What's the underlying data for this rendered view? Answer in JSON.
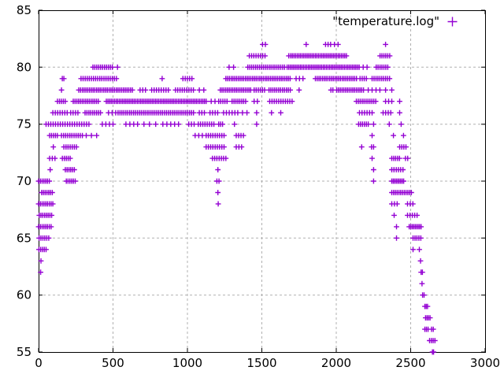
{
  "chart_data": {
    "type": "scatter",
    "title": "",
    "xlabel": "",
    "ylabel": "",
    "xlim": [
      0,
      3000
    ],
    "ylim": [
      55,
      85
    ],
    "xticks": [
      0,
      500,
      1000,
      1500,
      2000,
      2500,
      3000
    ],
    "yticks": [
      55,
      60,
      65,
      70,
      75,
      80,
      85
    ],
    "grid": true,
    "grid_color": "#b0b0b0",
    "axis_color": "#000000",
    "background": "#ffffff",
    "legend_position": "top-right-inside",
    "series": [
      {
        "name": "\"temperature.log\"",
        "marker": "plus",
        "color": "#9400d3",
        "points_rle_format": "[y, x_start, x_end, x_step] ; x_step 0 = single point at x_start",
        "points_rle": [
          [
            55,
            2646,
            2654,
            8
          ],
          [
            56,
            2627,
            2663,
            12
          ],
          [
            57,
            2595,
            2617,
            11
          ],
          [
            57,
            2640,
            2652,
            12
          ],
          [
            58,
            2600,
            2630,
            10
          ],
          [
            59,
            2595,
            2613,
            9
          ],
          [
            60,
            2580,
            2590,
            10
          ],
          [
            61,
            2576,
            2576,
            0
          ],
          [
            62,
            14,
            14,
            0
          ],
          [
            62,
            2570,
            2579,
            9
          ],
          [
            63,
            16,
            16,
            0
          ],
          [
            63,
            2566,
            2566,
            0
          ],
          [
            64,
            2,
            50,
            12
          ],
          [
            64,
            2516,
            2516,
            0
          ],
          [
            64,
            2558,
            2558,
            0
          ],
          [
            65,
            3,
            68,
            13
          ],
          [
            65,
            2405,
            2405,
            0
          ],
          [
            65,
            2516,
            2568,
            13
          ],
          [
            66,
            0,
            84,
            12
          ],
          [
            66,
            2405,
            2405,
            0
          ],
          [
            66,
            2490,
            2570,
            10
          ],
          [
            67,
            4,
            88,
            12
          ],
          [
            67,
            2389,
            2389,
            0
          ],
          [
            67,
            2479,
            2543,
            16
          ],
          [
            68,
            0,
            96,
            12
          ],
          [
            68,
            1207,
            1207,
            0
          ],
          [
            68,
            2373,
            2409,
            18
          ],
          [
            68,
            2479,
            2515,
            18
          ],
          [
            69,
            20,
            92,
            12
          ],
          [
            69,
            1205,
            1205,
            0
          ],
          [
            69,
            2373,
            2505,
            12
          ],
          [
            70,
            0,
            72,
            12
          ],
          [
            70,
            186,
            246,
            12
          ],
          [
            70,
            1198,
            1212,
            14
          ],
          [
            70,
            2251,
            2251,
            0
          ],
          [
            70,
            2373,
            2453,
            10
          ],
          [
            71,
            78,
            78,
            0
          ],
          [
            71,
            180,
            240,
            12
          ],
          [
            71,
            1205,
            1205,
            0
          ],
          [
            71,
            2251,
            2251,
            0
          ],
          [
            71,
            2373,
            2448,
            15
          ],
          [
            72,
            74,
            110,
            18
          ],
          [
            72,
            160,
            214,
            13
          ],
          [
            72,
            1168,
            1258,
            15
          ],
          [
            72,
            2241,
            2241,
            0
          ],
          [
            72,
            2373,
            2436,
            13
          ],
          [
            72,
            2465,
            2480,
            15
          ],
          [
            73,
            99,
            99,
            0
          ],
          [
            73,
            170,
            254,
            14
          ],
          [
            73,
            1126,
            1246,
            15
          ],
          [
            73,
            1328,
            1364,
            18
          ],
          [
            73,
            2171,
            2171,
            0
          ],
          [
            73,
            2237,
            2251,
            14
          ],
          [
            73,
            2426,
            2470,
            14
          ],
          [
            74,
            74,
            126,
            13
          ],
          [
            74,
            154,
            294,
            14
          ],
          [
            74,
            320,
            391,
            35
          ],
          [
            74,
            1052,
            1100,
            24
          ],
          [
            74,
            1126,
            1250,
            15
          ],
          [
            74,
            1328,
            1376,
            16
          ],
          [
            74,
            2241,
            2241,
            0
          ],
          [
            74,
            2384,
            2384,
            0
          ],
          [
            74,
            2452,
            2452,
            0
          ],
          [
            75,
            50,
            348,
            16
          ],
          [
            75,
            428,
            500,
            24
          ],
          [
            75,
            587,
            666,
            26
          ],
          [
            75,
            708,
            708,
            0
          ],
          [
            75,
            745,
            787,
            42
          ],
          [
            75,
            835,
            862,
            27
          ],
          [
            75,
            888,
            941,
            26
          ],
          [
            75,
            1009,
            1046,
            18
          ],
          [
            75,
            1073,
            1184,
            15
          ],
          [
            75,
            1210,
            1237,
            13
          ],
          [
            75,
            1316,
            1316,
            0
          ],
          [
            75,
            1465,
            1465,
            0
          ],
          [
            75,
            2150,
            2215,
            13
          ],
          [
            75,
            2251,
            2251,
            0
          ],
          [
            75,
            2356,
            2356,
            0
          ],
          [
            75,
            2436,
            2436,
            0
          ],
          [
            76,
            96,
            192,
            16
          ],
          [
            76,
            216,
            264,
            16
          ],
          [
            76,
            312,
            420,
            13
          ],
          [
            76,
            470,
            518,
            24
          ],
          [
            76,
            534,
            1046,
            13
          ],
          [
            76,
            1080,
            1115,
            17
          ],
          [
            76,
            1152,
            1205,
            17
          ],
          [
            76,
            1243,
            1340,
            19
          ],
          [
            76,
            1370,
            1400,
            30
          ],
          [
            76,
            1465,
            1465,
            0
          ],
          [
            76,
            1565,
            1627,
            62
          ],
          [
            76,
            2156,
            2241,
            17
          ],
          [
            76,
            2315,
            2368,
            17
          ],
          [
            76,
            2426,
            2426,
            0
          ],
          [
            77,
            127,
            180,
            13
          ],
          [
            77,
            233,
            402,
            12
          ],
          [
            77,
            455,
            1131,
            11
          ],
          [
            77,
            1160,
            1185,
            25
          ],
          [
            77,
            1210,
            1274,
            14
          ],
          [
            77,
            1300,
            1400,
            13
          ],
          [
            77,
            1448,
            1470,
            22
          ],
          [
            77,
            1553,
            1712,
            15
          ],
          [
            77,
            2135,
            2268,
            13
          ],
          [
            77,
            2331,
            2373,
            21
          ],
          [
            77,
            2426,
            2426,
            0
          ],
          [
            78,
            154,
            154,
            0
          ],
          [
            78,
            270,
            632,
            12
          ],
          [
            78,
            682,
            719,
            18
          ],
          [
            78,
            760,
            877,
            16
          ],
          [
            78,
            920,
            1046,
            15
          ],
          [
            78,
            1080,
            1110,
            30
          ],
          [
            78,
            1221,
            1432,
            12
          ],
          [
            78,
            1448,
            1522,
            14
          ],
          [
            78,
            1548,
            1700,
            13
          ],
          [
            78,
            1750,
            1750,
            0
          ],
          [
            78,
            1964,
            1977,
            13
          ],
          [
            78,
            2003,
            2183,
            12
          ],
          [
            78,
            2215,
            2294,
            26
          ],
          [
            78,
            2331,
            2331,
            0
          ],
          [
            78,
            2373,
            2373,
            0
          ],
          [
            79,
            159,
            170,
            11
          ],
          [
            79,
            285,
            531,
            14
          ],
          [
            79,
            830,
            830,
            0
          ],
          [
            79,
            970,
            1030,
            15
          ],
          [
            79,
            1258,
            1700,
            12
          ],
          [
            79,
            1730,
            1776,
            23
          ],
          [
            79,
            1860,
            2146,
            12
          ],
          [
            79,
            2160,
            2215,
            14
          ],
          [
            79,
            2241,
            2368,
            13
          ],
          [
            80,
            365,
            500,
            13
          ],
          [
            80,
            530,
            530,
            0
          ],
          [
            80,
            1280,
            1310,
            30
          ],
          [
            80,
            1406,
            1654,
            13
          ],
          [
            80,
            1670,
            2162,
            11
          ],
          [
            80,
            2181,
            2207,
            26
          ],
          [
            80,
            2268,
            2347,
            13
          ],
          [
            81,
            1416,
            1527,
            15
          ],
          [
            81,
            1681,
            1681,
            0
          ],
          [
            81,
            1694,
            2071,
            11
          ],
          [
            81,
            2294,
            2363,
            13
          ],
          [
            82,
            1505,
            1524,
            19
          ],
          [
            82,
            1798,
            1798,
            0
          ],
          [
            82,
            1928,
            1963,
            17
          ],
          [
            82,
            1988,
            2012,
            24
          ],
          [
            82,
            2331,
            2331,
            0
          ]
        ]
      }
    ]
  }
}
